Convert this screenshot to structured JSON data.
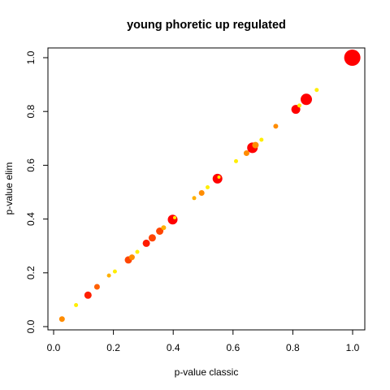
{
  "chart_data": {
    "type": "scatter",
    "title": "young phoretic up regulated",
    "xlabel": "p-value classic",
    "ylabel": "p-value elim",
    "xlim": [
      0.0,
      1.0
    ],
    "ylim": [
      0.0,
      1.0
    ],
    "x_ticks": [
      "0.0",
      "0.2",
      "0.4",
      "0.6",
      "0.8",
      "1.0"
    ],
    "y_ticks": [
      "0.0",
      "0.2",
      "0.4",
      "0.6",
      "0.8",
      "1.0"
    ],
    "grid": false,
    "legend": "none",
    "colors": {
      "red": "#ff0000",
      "orange_red": "#ff4500",
      "orange": "#ff8c00",
      "amber": "#ffb000",
      "yellow": "#ffee00"
    },
    "points": [
      {
        "x": 0.028,
        "y": 0.028,
        "size": 3.5,
        "color": "#ff8c00"
      },
      {
        "x": 0.075,
        "y": 0.08,
        "size": 2.5,
        "color": "#ffee00"
      },
      {
        "x": 0.115,
        "y": 0.117,
        "size": 4.5,
        "color": "#ff2000"
      },
      {
        "x": 0.145,
        "y": 0.148,
        "size": 3.5,
        "color": "#ff6000"
      },
      {
        "x": 0.185,
        "y": 0.19,
        "size": 2.5,
        "color": "#ffb000"
      },
      {
        "x": 0.205,
        "y": 0.205,
        "size": 2.5,
        "color": "#ffee00"
      },
      {
        "x": 0.25,
        "y": 0.248,
        "size": 4.5,
        "color": "#ff4500"
      },
      {
        "x": 0.262,
        "y": 0.258,
        "size": 3.5,
        "color": "#ff8c00"
      },
      {
        "x": 0.28,
        "y": 0.278,
        "size": 2.5,
        "color": "#ffee00"
      },
      {
        "x": 0.31,
        "y": 0.31,
        "size": 4.5,
        "color": "#ff1a00"
      },
      {
        "x": 0.33,
        "y": 0.33,
        "size": 4.5,
        "color": "#ff4500"
      },
      {
        "x": 0.355,
        "y": 0.355,
        "size": 4.5,
        "color": "#ff4500"
      },
      {
        "x": 0.368,
        "y": 0.368,
        "size": 3.0,
        "color": "#ffb000"
      },
      {
        "x": 0.398,
        "y": 0.398,
        "size": 6.0,
        "color": "#ff0000"
      },
      {
        "x": 0.405,
        "y": 0.405,
        "size": 2.0,
        "color": "#ffee00"
      },
      {
        "x": 0.47,
        "y": 0.478,
        "size": 2.5,
        "color": "#ffb000"
      },
      {
        "x": 0.495,
        "y": 0.497,
        "size": 3.5,
        "color": "#ff8c00"
      },
      {
        "x": 0.515,
        "y": 0.518,
        "size": 2.5,
        "color": "#ffee00"
      },
      {
        "x": 0.548,
        "y": 0.55,
        "size": 6.0,
        "color": "#ff0000"
      },
      {
        "x": 0.553,
        "y": 0.556,
        "size": 2.0,
        "color": "#ffee00"
      },
      {
        "x": 0.61,
        "y": 0.615,
        "size": 2.5,
        "color": "#ffee00"
      },
      {
        "x": 0.645,
        "y": 0.645,
        "size": 3.5,
        "color": "#ff8c00"
      },
      {
        "x": 0.665,
        "y": 0.665,
        "size": 6.5,
        "color": "#ff0000"
      },
      {
        "x": 0.675,
        "y": 0.675,
        "size": 4.0,
        "color": "#ff8c00"
      },
      {
        "x": 0.695,
        "y": 0.695,
        "size": 2.5,
        "color": "#ffee00"
      },
      {
        "x": 0.743,
        "y": 0.745,
        "size": 3.0,
        "color": "#ff8c00"
      },
      {
        "x": 0.81,
        "y": 0.808,
        "size": 5.5,
        "color": "#ff0000"
      },
      {
        "x": 0.822,
        "y": 0.822,
        "size": 2.5,
        "color": "#ffee00"
      },
      {
        "x": 0.845,
        "y": 0.845,
        "size": 7.0,
        "color": "#ff0000"
      },
      {
        "x": 0.88,
        "y": 0.88,
        "size": 2.5,
        "color": "#ffee00"
      },
      {
        "x": 0.999,
        "y": 1.0,
        "size": 10.0,
        "color": "#ff0000"
      }
    ]
  }
}
